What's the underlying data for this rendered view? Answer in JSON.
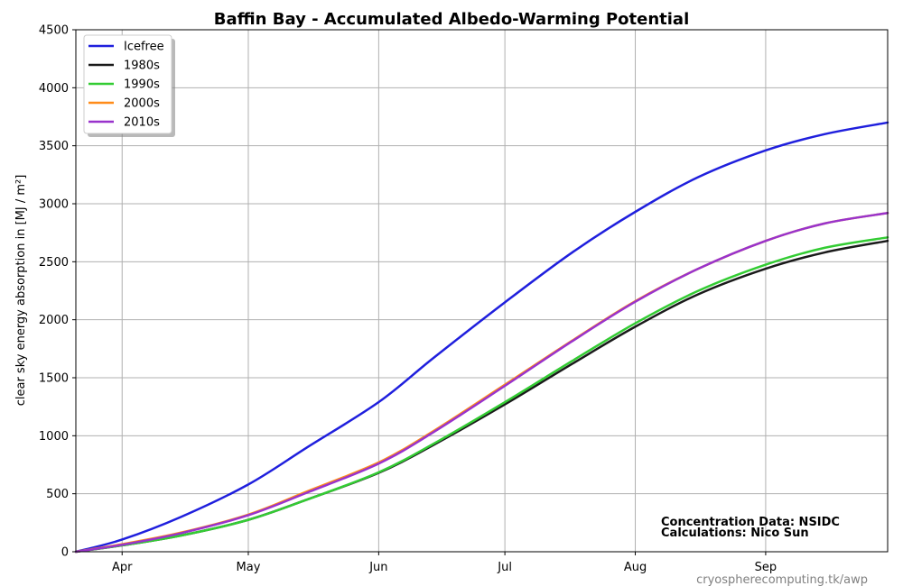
{
  "chart_data": {
    "type": "line",
    "title": "Baffin Bay - Accumulated Albedo-Warming Potential",
    "xlabel": "",
    "ylabel": "clear sky energy absorption in  [MJ / m²]",
    "ylim": [
      0,
      4500
    ],
    "y_ticks": [
      0,
      500,
      1000,
      1500,
      2000,
      2500,
      3000,
      3500,
      4000,
      4500
    ],
    "x_axis_unit": "day of year",
    "xlim": [
      80,
      273
    ],
    "x_ticks": [
      {
        "label": "Apr",
        "x": 91
      },
      {
        "label": "May",
        "x": 121
      },
      {
        "label": "Jun",
        "x": 152
      },
      {
        "label": "Jul",
        "x": 182
      },
      {
        "label": "Aug",
        "x": 213
      },
      {
        "label": "Sep",
        "x": 244
      }
    ],
    "grid": true,
    "legend_position": "top-left",
    "x": [
      80,
      91,
      105,
      121,
      135,
      152,
      165,
      182,
      198,
      213,
      228,
      244,
      258,
      273
    ],
    "series": [
      {
        "name": "Icefree",
        "color": "#1f1fdd",
        "values": [
          0,
          105,
          300,
          580,
          900,
          1290,
          1670,
          2150,
          2580,
          2930,
          3230,
          3460,
          3600,
          3700
        ]
      },
      {
        "name": "1980s",
        "color": "#1a1a1a",
        "values": [
          0,
          55,
          140,
          275,
          450,
          680,
          920,
          1270,
          1620,
          1940,
          2220,
          2440,
          2580,
          2680
        ]
      },
      {
        "name": "1990s",
        "color": "#33cc33",
        "values": [
          0,
          55,
          140,
          275,
          450,
          685,
          930,
          1290,
          1645,
          1970,
          2250,
          2475,
          2620,
          2710
        ]
      },
      {
        "name": "2000s",
        "color": "#ff8c1a",
        "values": [
          0,
          65,
          165,
          320,
          520,
          770,
          1040,
          1440,
          1820,
          2160,
          2440,
          2680,
          2830,
          2920
        ]
      },
      {
        "name": "2010s",
        "color": "#9933cc",
        "values": [
          0,
          60,
          160,
          315,
          510,
          760,
          1030,
          1430,
          1815,
          2155,
          2440,
          2680,
          2830,
          2920
        ]
      }
    ],
    "annotations": [
      "Concentration Data: NSIDC",
      "Calculations: Nico Sun"
    ],
    "credit": "cryospherecomputing.tk/awp"
  }
}
